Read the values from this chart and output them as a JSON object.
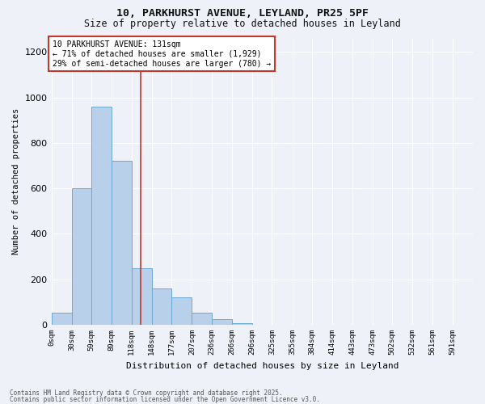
{
  "title1": "10, PARKHURST AVENUE, LEYLAND, PR25 5PF",
  "title2": "Size of property relative to detached houses in Leyland",
  "xlabel": "Distribution of detached houses by size in Leyland",
  "ylabel": "Number of detached properties",
  "bin_labels": [
    "0sqm",
    "30sqm",
    "59sqm",
    "89sqm",
    "118sqm",
    "148sqm",
    "177sqm",
    "207sqm",
    "236sqm",
    "266sqm",
    "296sqm",
    "325sqm",
    "355sqm",
    "384sqm",
    "414sqm",
    "443sqm",
    "473sqm",
    "502sqm",
    "532sqm",
    "561sqm",
    "591sqm"
  ],
  "bin_edges": [
    0,
    30,
    59,
    89,
    118,
    148,
    177,
    207,
    236,
    266,
    296,
    325,
    355,
    384,
    414,
    443,
    473,
    502,
    532,
    561,
    591,
    621
  ],
  "bar_heights": [
    55,
    600,
    960,
    720,
    250,
    160,
    120,
    55,
    25,
    8,
    0,
    0,
    0,
    0,
    0,
    0,
    0,
    0,
    0,
    0,
    0
  ],
  "bar_color": "#b8d0ea",
  "bar_edge_color": "#6aaad4",
  "property_size": 131,
  "property_line_color": "#c0392b",
  "annotation_text": "10 PARKHURST AVENUE: 131sqm\n← 71% of detached houses are smaller (1,929)\n29% of semi-detached houses are larger (780) →",
  "annotation_box_color": "#c0392b",
  "ylim": [
    0,
    1300
  ],
  "ylim_display": 1260,
  "yticks": [
    0,
    200,
    400,
    600,
    800,
    1000,
    1200
  ],
  "background_color": "#eef2f8",
  "footer1": "Contains HM Land Registry data © Crown copyright and database right 2025.",
  "footer2": "Contains public sector information licensed under the Open Government Licence v3.0.",
  "grid_color": "#ffffff"
}
